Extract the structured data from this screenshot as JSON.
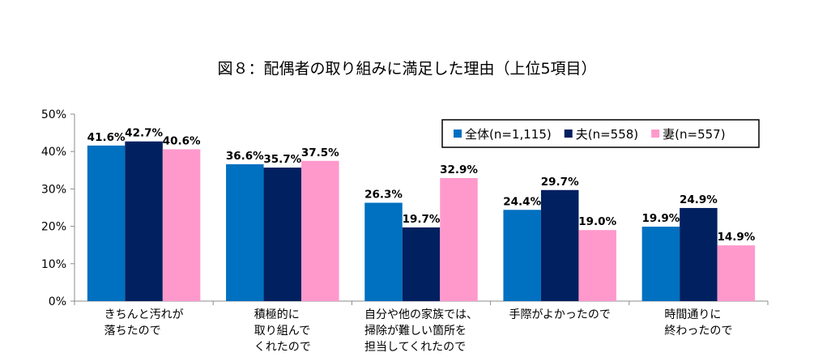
{
  "chart_data": {
    "type": "bar",
    "title": "図８：配偶者の取り組みに満足した理由（上位5項目）",
    "categories": [
      [
        "きちんと汚れが",
        "落ちたので"
      ],
      [
        "積極的に",
        "取り組んで",
        "くれたので"
      ],
      [
        "自分や他の家族では、",
        "掃除が難しい箇所を",
        "担当してくれたので"
      ],
      [
        "手際がよかったので"
      ],
      [
        "時間通りに",
        "終わったので"
      ]
    ],
    "series": [
      {
        "name": "全体(n=1,115)",
        "color": "#0070C0",
        "values": [
          41.6,
          36.6,
          26.3,
          24.4,
          19.9
        ]
      },
      {
        "name": "夫(n=558)",
        "color": "#002060",
        "values": [
          42.7,
          35.7,
          19.7,
          29.7,
          24.9
        ]
      },
      {
        "name": "妻(n=557)",
        "color": "#FF99CC",
        "values": [
          40.6,
          37.5,
          32.9,
          19.0,
          14.9
        ]
      }
    ],
    "ylim": [
      0,
      50
    ],
    "yticks": [
      "0%",
      "10%",
      "20%",
      "30%",
      "40%",
      "50%"
    ],
    "value_suffix": "%",
    "xlabel": "",
    "ylabel": "",
    "legend_position": "top-right",
    "grid": false
  }
}
